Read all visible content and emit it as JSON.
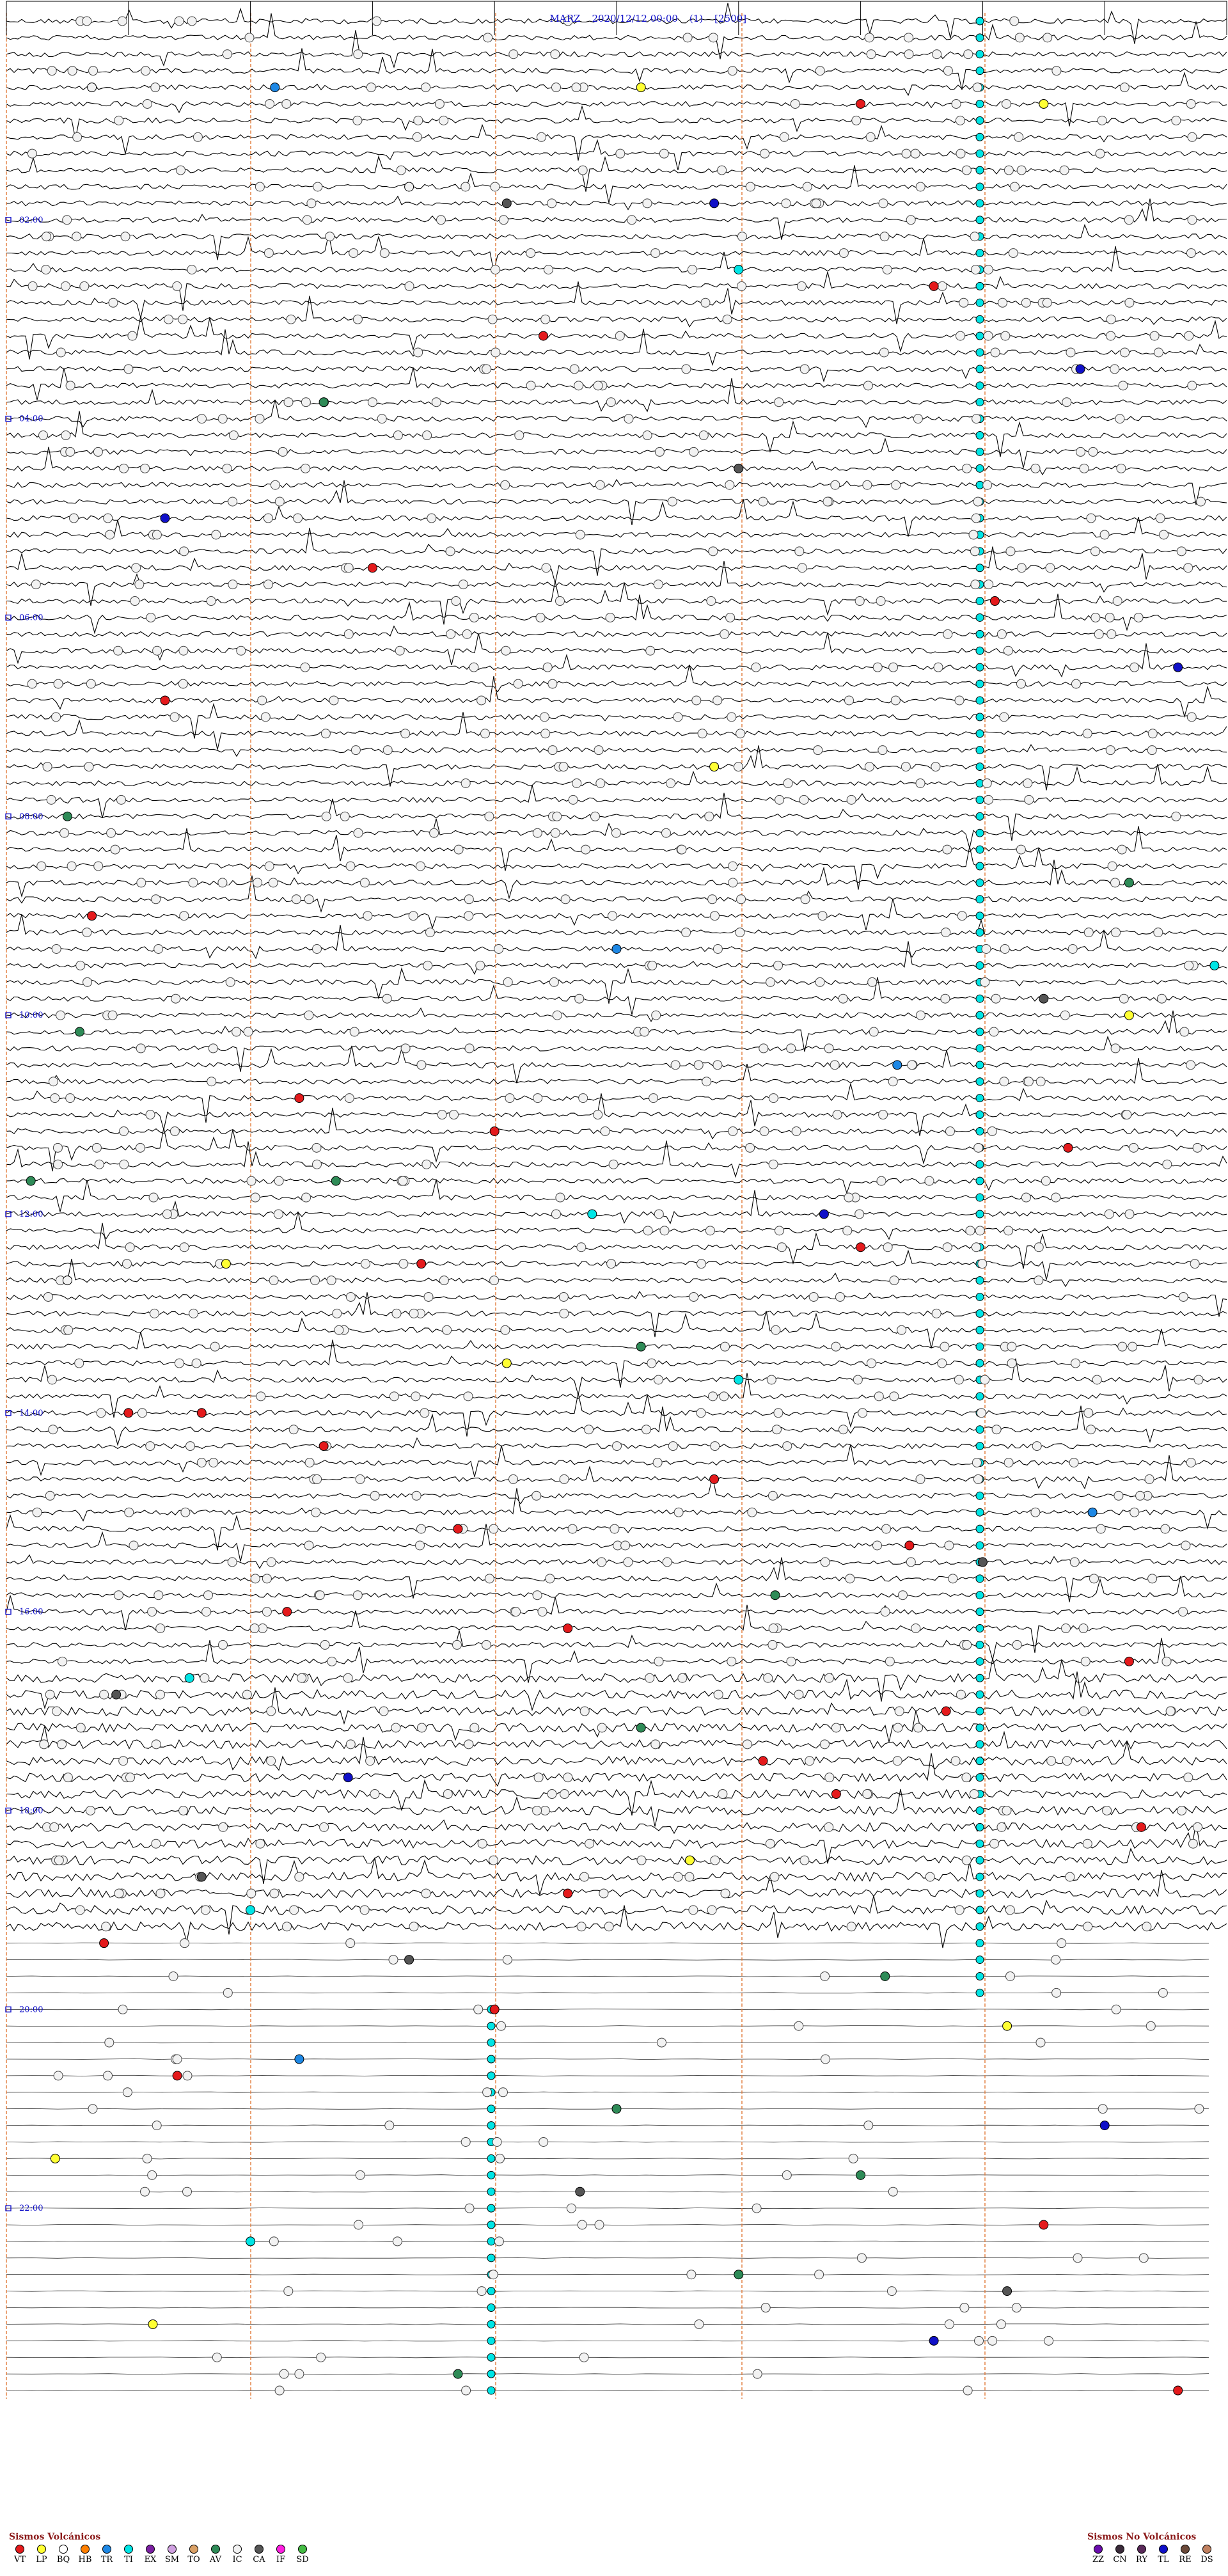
{
  "header": {
    "station": "MARZ",
    "datetime": "2020/12/12 00:00",
    "channel": "(1)",
    "scale": "[2500]"
  },
  "chart_data": {
    "type": "scatter",
    "title": "MARZ 2020/12/12 00:00 (1) [2500]",
    "hour_labels": [
      "02:00",
      "04:00",
      "06:00",
      "08:00",
      "10:00",
      "12:00",
      "14:00",
      "16:00",
      "18:00",
      "20:00",
      "22:00"
    ],
    "colors": {
      "VT": "#e41a1c",
      "LP": "#ffff33",
      "BQ": "#ffffff",
      "HB": "#ff7f00",
      "TR": "#1e88e5",
      "TI": "#00e5e5",
      "EX": "#7b1fa2",
      "SM": "#cfa0e0",
      "TO": "#d9a066",
      "AV": "#2e8b57",
      "IC": "#f2f2f2",
      "CA": "#555555",
      "IF": "#ff1ee0",
      "SD": "#44bb44",
      "ZZ": "#6a0dad",
      "CN": "#3a2a3a",
      "RY": "#5a2a5a",
      "TL": "#1010c8",
      "RE": "#6b4a3a",
      "DS": "#c08060"
    },
    "events": [
      {
        "min": 45,
        "x": 7,
        "type": "IC"
      },
      {
        "min": 46,
        "x": 52,
        "type": "LP"
      },
      {
        "min": 48,
        "x": 22,
        "type": "TR"
      },
      {
        "min": 52,
        "x": 70,
        "type": "VT"
      },
      {
        "min": 53,
        "x": 85,
        "type": "LP"
      },
      {
        "min": 100,
        "x": 33,
        "type": "IC"
      },
      {
        "min": 110,
        "x": 58,
        "type": "TL"
      },
      {
        "min": 118,
        "x": 41,
        "type": "CA"
      },
      {
        "min": 150,
        "x": 60,
        "type": "TI"
      },
      {
        "min": 165,
        "x": 76,
        "type": "VT"
      },
      {
        "min": 190,
        "x": 44,
        "type": "VT"
      },
      {
        "min": 210,
        "x": 88,
        "type": "TL"
      },
      {
        "min": 235,
        "x": 26,
        "type": "AV"
      },
      {
        "min": 272,
        "x": 60,
        "type": "CA"
      },
      {
        "min": 300,
        "x": 13,
        "type": "TL"
      },
      {
        "min": 330,
        "x": 30,
        "type": "VT"
      },
      {
        "min": 358,
        "x": 81,
        "type": "VT"
      },
      {
        "min": 390,
        "x": 96,
        "type": "TL"
      },
      {
        "min": 410,
        "x": 13,
        "type": "VT"
      },
      {
        "min": 450,
        "x": 58,
        "type": "LP"
      },
      {
        "min": 485,
        "x": 5,
        "type": "AV"
      },
      {
        "min": 520,
        "x": 92,
        "type": "AV"
      },
      {
        "min": 545,
        "x": 7,
        "type": "VT"
      },
      {
        "min": 560,
        "x": 50,
        "type": "TR"
      },
      {
        "min": 575,
        "x": 99,
        "type": "TI"
      },
      {
        "min": 590,
        "x": 85,
        "type": "CA"
      },
      {
        "min": 605,
        "x": 92,
        "type": "LP"
      },
      {
        "min": 610,
        "x": 6,
        "type": "AV"
      },
      {
        "min": 630,
        "x": 73,
        "type": "TR"
      },
      {
        "min": 655,
        "x": 24,
        "type": "VT"
      },
      {
        "min": 670,
        "x": 40,
        "type": "VT"
      },
      {
        "min": 680,
        "x": 87,
        "type": "VT"
      },
      {
        "min": 700,
        "x": 2,
        "type": "AV"
      },
      {
        "min": 705,
        "x": 27,
        "type": "AV"
      },
      {
        "min": 720,
        "x": 48,
        "type": "TI"
      },
      {
        "min": 725,
        "x": 67,
        "type": "TL"
      },
      {
        "min": 740,
        "x": 70,
        "type": "VT"
      },
      {
        "min": 755,
        "x": 18,
        "type": "LP"
      },
      {
        "min": 758,
        "x": 34,
        "type": "VT"
      },
      {
        "min": 760,
        "x": 5,
        "type": "IC"
      },
      {
        "min": 800,
        "x": 52,
        "type": "AV"
      },
      {
        "min": 815,
        "x": 41,
        "type": "LP"
      },
      {
        "min": 825,
        "x": 60,
        "type": "TI"
      },
      {
        "min": 840,
        "x": 16,
        "type": "VT"
      },
      {
        "min": 845,
        "x": 10,
        "type": "VT"
      },
      {
        "min": 860,
        "x": 26,
        "type": "VT"
      },
      {
        "min": 880,
        "x": 58,
        "type": "VT"
      },
      {
        "min": 900,
        "x": 89,
        "type": "TR"
      },
      {
        "min": 915,
        "x": 37,
        "type": "VT"
      },
      {
        "min": 920,
        "x": 74,
        "type": "VT"
      },
      {
        "min": 935,
        "x": 80,
        "type": "CA"
      },
      {
        "min": 950,
        "x": 63,
        "type": "AV"
      },
      {
        "min": 965,
        "x": 23,
        "type": "VT"
      },
      {
        "min": 975,
        "x": 46,
        "type": "VT"
      },
      {
        "min": 990,
        "x": 92,
        "type": "VT"
      },
      {
        "min": 1005,
        "x": 15,
        "type": "TI"
      },
      {
        "min": 1010,
        "x": 9,
        "type": "CA"
      },
      {
        "min": 1020,
        "x": 77,
        "type": "VT"
      },
      {
        "min": 1035,
        "x": 52,
        "type": "AV"
      },
      {
        "min": 1050,
        "x": 62,
        "type": "VT"
      },
      {
        "min": 1060,
        "x": 28,
        "type": "TL"
      },
      {
        "min": 1075,
        "x": 68,
        "type": "VT"
      },
      {
        "min": 1090,
        "x": 93,
        "type": "VT"
      },
      {
        "min": 1110,
        "x": 56,
        "type": "LP"
      },
      {
        "min": 1120,
        "x": 16,
        "type": "CA"
      },
      {
        "min": 1130,
        "x": 46,
        "type": "VT"
      },
      {
        "min": 1145,
        "x": 20,
        "type": "TI"
      },
      {
        "min": 1160,
        "x": 8,
        "type": "VT"
      },
      {
        "min": 1175,
        "x": 33,
        "type": "CA"
      },
      {
        "min": 1185,
        "x": 72,
        "type": "AV"
      },
      {
        "min": 1200,
        "x": 40,
        "type": "VT"
      },
      {
        "min": 1215,
        "x": 82,
        "type": "LP"
      },
      {
        "min": 1230,
        "x": 24,
        "type": "TR"
      },
      {
        "min": 1245,
        "x": 14,
        "type": "VT"
      },
      {
        "min": 1260,
        "x": 50,
        "type": "AV"
      },
      {
        "min": 1275,
        "x": 90,
        "type": "TL"
      },
      {
        "min": 1290,
        "x": 4,
        "type": "LP"
      },
      {
        "min": 1300,
        "x": 70,
        "type": "AV"
      },
      {
        "min": 1315,
        "x": 47,
        "type": "CA"
      },
      {
        "min": 1330,
        "x": 85,
        "type": "VT"
      },
      {
        "min": 1345,
        "x": 20,
        "type": "TI"
      },
      {
        "min": 1360,
        "x": 60,
        "type": "AV"
      },
      {
        "min": 1375,
        "x": 82,
        "type": "CA"
      },
      {
        "min": 1390,
        "x": 12,
        "type": "LP"
      },
      {
        "min": 1405,
        "x": 76,
        "type": "TL"
      },
      {
        "min": 1420,
        "x": 37,
        "type": "AV"
      },
      {
        "min": 1432,
        "x": 96,
        "type": "VT"
      }
    ]
  },
  "legend": {
    "volcanic_title": "Sismos Volcánicos",
    "volcanic": [
      "VT",
      "LP",
      "BQ",
      "HB",
      "TR",
      "TI",
      "EX",
      "SM",
      "TO",
      "AV",
      "IC",
      "CA",
      "IF",
      "SD"
    ],
    "non_volcanic_title": "Sismos No Volcánicos",
    "non_volcanic": [
      "ZZ",
      "CN",
      "RY",
      "TL",
      "RE",
      "DS"
    ]
  }
}
